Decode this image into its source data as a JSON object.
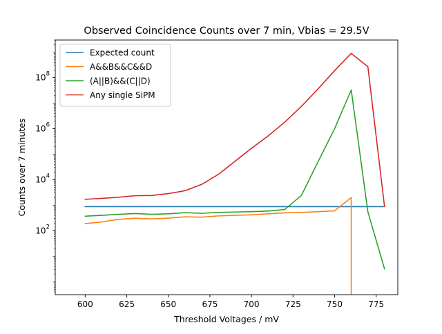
{
  "chart_data": {
    "type": "line",
    "title": "Observed Coincidence Counts over 7 min, Vbias = 29.5V",
    "xlabel": "Threshold Voltages / mV",
    "ylabel": "Counts over 7 minutes",
    "xlim": [
      582,
      788
    ],
    "ylim": [
      0.31,
      3000000000.0
    ],
    "yscale": "log",
    "grid": false,
    "legend_position": "upper-left",
    "x_ticks": [
      600,
      625,
      650,
      675,
      700,
      725,
      750,
      775
    ],
    "y_ticks": [
      {
        "value": 100,
        "mantissa": "10",
        "exponent": "2"
      },
      {
        "value": 10000,
        "mantissa": "10",
        "exponent": "4"
      },
      {
        "value": 1000000,
        "mantissa": "10",
        "exponent": "6"
      },
      {
        "value": 100000000,
        "mantissa": "10",
        "exponent": "8"
      }
    ],
    "x": [
      600,
      610,
      620,
      630,
      640,
      650,
      660,
      670,
      680,
      690,
      700,
      710,
      720,
      730,
      740,
      750,
      760,
      770,
      780
    ],
    "series": [
      {
        "name": "Expected count",
        "color": "#1f77b4",
        "points": [
          [
            600,
            880
          ],
          [
            780,
            880
          ]
        ]
      },
      {
        "name": "A&&B&&C&&D",
        "color": "#ff7f0e",
        "points": [
          [
            600,
            190
          ],
          [
            610,
            220
          ],
          [
            620,
            280
          ],
          [
            630,
            310
          ],
          [
            640,
            290
          ],
          [
            650,
            310
          ],
          [
            660,
            350
          ],
          [
            670,
            340
          ],
          [
            680,
            380
          ],
          [
            690,
            400
          ],
          [
            700,
            420
          ],
          [
            710,
            460
          ],
          [
            720,
            500
          ],
          [
            730,
            520
          ],
          [
            740,
            560
          ],
          [
            750,
            600
          ],
          [
            760,
            2000
          ],
          [
            760,
            0.31
          ]
        ]
      },
      {
        "name": "(A||B)&&(C||D)",
        "color": "#2ca02c",
        "points": [
          [
            600,
            370
          ],
          [
            610,
            400
          ],
          [
            620,
            440
          ],
          [
            630,
            470
          ],
          [
            640,
            440
          ],
          [
            650,
            460
          ],
          [
            660,
            510
          ],
          [
            670,
            480
          ],
          [
            680,
            520
          ],
          [
            690,
            540
          ],
          [
            700,
            560
          ],
          [
            710,
            590
          ],
          [
            720,
            680
          ],
          [
            730,
            2400
          ],
          [
            740,
            50000
          ],
          [
            750,
            1000000
          ],
          [
            760,
            33000000
          ],
          [
            770,
            550
          ],
          [
            780,
            3.2
          ]
        ]
      },
      {
        "name": "Any single SiPM",
        "color": "#d62728",
        "points": [
          [
            600,
            1700
          ],
          [
            610,
            1850
          ],
          [
            620,
            2050
          ],
          [
            630,
            2350
          ],
          [
            640,
            2400
          ],
          [
            650,
            2850
          ],
          [
            660,
            3700
          ],
          [
            670,
            6500
          ],
          [
            680,
            16000
          ],
          [
            690,
            52000
          ],
          [
            700,
            170000
          ],
          [
            710,
            520000
          ],
          [
            720,
            1800000
          ],
          [
            730,
            7500000
          ],
          [
            740,
            36000000
          ],
          [
            750,
            190000000
          ],
          [
            760,
            900000000
          ],
          [
            770,
            270000000
          ],
          [
            780,
            900
          ]
        ]
      }
    ]
  }
}
